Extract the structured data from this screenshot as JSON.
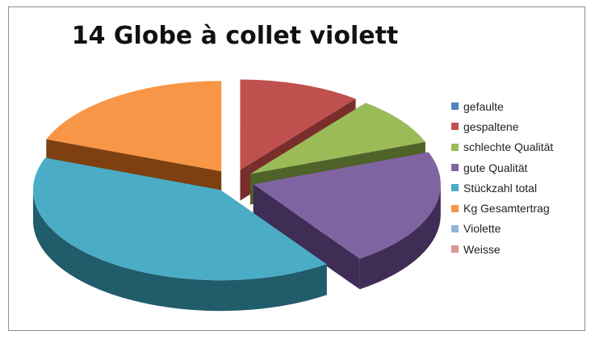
{
  "chart_data": {
    "type": "pie",
    "style": "3d-exploded",
    "title": "14 Globe à collet violett",
    "legend_position": "right",
    "slices": [
      {
        "label": "gefaulte",
        "value": 0,
        "color": "#4f81bd",
        "side": "#2d4a6d"
      },
      {
        "label": "gespaltene",
        "value": 11,
        "color": "#c0504d",
        "side": "#7a2e2c"
      },
      {
        "label": "schlechte Qualität",
        "value": 9,
        "color": "#9bbb59",
        "side": "#4f6227"
      },
      {
        "label": "gute Qualität",
        "value": 22,
        "color": "#8064a2",
        "side": "#3f2d55"
      },
      {
        "label": "Stückzahl total",
        "value": 42,
        "color": "#4bacc6",
        "side": "#215c6b"
      },
      {
        "label": "Kg Gesamtertrag",
        "value": 20,
        "color": "#f79646",
        "side": "#7e4010"
      },
      {
        "label": "Violette",
        "value": 0,
        "color": "#95b3d7",
        "side": "#5a7aa0"
      },
      {
        "label": "Weisse",
        "value": 0,
        "color": "#d99694",
        "side": "#9c5a58"
      }
    ]
  }
}
